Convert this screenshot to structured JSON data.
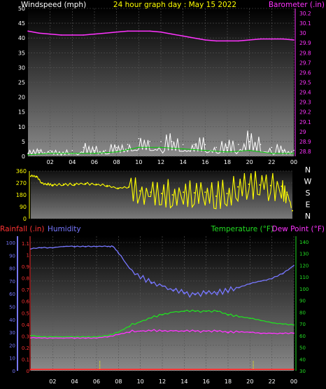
{
  "colors": {
    "background": "#000000",
    "wind": "#ffffff",
    "wind_avg": "#00cc00",
    "baro": "#ff33ff",
    "dir": "#ffff00",
    "rain": "#ff3333",
    "humidity": "#7777ff",
    "temp": "#22dd22",
    "dew": "#ff33ff",
    "rain_axis": "#ff3333",
    "hum_axis": "#7777ff",
    "temp_axis": "#22dd22"
  },
  "chart_data": [
    {
      "type": "line",
      "panel": "top",
      "title": "24 hour graph day : May 15 2022",
      "left_axis_label": "Windspeed (mph)",
      "right_axis_label": "Barometer (.in)",
      "x_ticks": [
        "02",
        "04",
        "06",
        "08",
        "10",
        "12",
        "14",
        "16",
        "18",
        "20",
        "22",
        "00"
      ],
      "y_left_ticks": [
        "0",
        "5",
        "10",
        "15",
        "20",
        "25",
        "30",
        "35",
        "40",
        "45",
        "50"
      ],
      "y_right_ticks": [
        "28.8",
        "28.9",
        "29",
        "29.1",
        "29.2",
        "29.3",
        "29.4",
        "29.5",
        "29.6",
        "29.7",
        "29.8",
        "29.9",
        "30",
        "30.1",
        "30.2"
      ],
      "ylim_left": [
        0,
        50
      ],
      "ylim_right": [
        28.75,
        30.25
      ],
      "series": [
        {
          "name": "Windspeed",
          "axis": "left",
          "x": [
            0,
            1,
            2,
            3,
            4,
            5,
            6,
            7,
            8,
            9,
            10,
            11,
            12,
            13,
            14,
            15,
            16,
            17,
            18,
            19,
            20,
            21,
            22,
            23,
            24
          ],
          "values": [
            1,
            2,
            2,
            1,
            2,
            3,
            2,
            2,
            3,
            4,
            6,
            5,
            5,
            5,
            4,
            4,
            4,
            3,
            3,
            4,
            5,
            4,
            3,
            2,
            2
          ]
        },
        {
          "name": "Wind average",
          "axis": "left",
          "x": [
            0,
            2,
            4,
            6,
            8,
            10,
            12,
            14,
            16,
            18,
            20,
            22,
            24
          ],
          "values": [
            0.5,
            1,
            1,
            1,
            1.5,
            3,
            3,
            2.5,
            2,
            1.5,
            2,
            1,
            1
          ]
        },
        {
          "name": "Barometer",
          "axis": "right",
          "x": [
            0,
            1,
            2,
            3,
            4,
            5,
            6,
            7,
            8,
            9,
            10,
            11,
            12,
            13,
            14,
            15,
            16,
            17,
            18,
            19,
            20,
            21,
            22,
            23,
            24
          ],
          "values": [
            30.02,
            30.0,
            29.99,
            29.98,
            29.98,
            29.98,
            29.99,
            30.0,
            30.01,
            30.02,
            30.02,
            30.02,
            30.01,
            29.99,
            29.97,
            29.95,
            29.93,
            29.92,
            29.92,
            29.92,
            29.93,
            29.94,
            29.94,
            29.94,
            29.93
          ]
        }
      ]
    },
    {
      "type": "scatter",
      "panel": "middle",
      "y_ticks": [
        "0",
        "90",
        "180",
        "270",
        "360"
      ],
      "right_labels": [
        "N",
        "W",
        "S",
        "E",
        "N"
      ],
      "ylim": [
        0,
        360
      ],
      "series": [
        {
          "name": "Wind direction",
          "x": [
            0,
            0.5,
            1,
            1.5,
            2,
            3,
            4,
            5,
            6,
            7,
            8,
            9,
            10,
            11,
            12,
            13,
            14,
            15,
            16,
            17,
            18,
            19,
            20,
            21,
            22,
            23,
            23.5,
            24
          ],
          "values": [
            320,
            320,
            270,
            260,
            255,
            260,
            260,
            265,
            260,
            250,
            230,
            240,
            210,
            200,
            190,
            180,
            200,
            195,
            200,
            170,
            190,
            240,
            260,
            255,
            250,
            245,
            200,
            60
          ]
        }
      ]
    },
    {
      "type": "line",
      "panel": "bottom",
      "left_axis_label_1": "Rainfall (.in)",
      "left_axis_label_2": "Humidity",
      "right_axis_label_1": "Temperature (°F)",
      "right_axis_label_2": "Dew Point (°F)",
      "x_ticks": [
        "02",
        "04",
        "06",
        "08",
        "10",
        "12",
        "14",
        "16",
        "18",
        "20",
        "22",
        "00"
      ],
      "rain_ticks": [
        "0",
        "0.1",
        "0.2",
        "0.3",
        "0.4",
        "0.5",
        "0.6",
        "0.7",
        "0.8",
        "0.9",
        "1",
        "1.1"
      ],
      "humidity_ticks": [
        "0",
        "10",
        "20",
        "30",
        "40",
        "50",
        "60",
        "70",
        "80",
        "90",
        "100"
      ],
      "temp_ticks": [
        "30",
        "40",
        "50",
        "60",
        "70",
        "80",
        "90",
        "100",
        "110",
        "120",
        "130",
        "140"
      ],
      "ylim_humidity": [
        0,
        100
      ],
      "ylim_temp": [
        30,
        140
      ],
      "series": [
        {
          "name": "Rainfall",
          "axis": "rain",
          "x": [
            0,
            24
          ],
          "values": [
            0,
            0
          ]
        },
        {
          "name": "Humidity",
          "axis": "humidity",
          "x": [
            0,
            1,
            2,
            3,
            4,
            5,
            6,
            7,
            7.5,
            8,
            9,
            10,
            11,
            12,
            13,
            14,
            15,
            16,
            17,
            18,
            19,
            20,
            21,
            22,
            23,
            24
          ],
          "values": [
            95,
            96,
            96,
            97,
            97,
            97,
            97,
            97,
            97,
            92,
            80,
            72,
            69,
            66,
            63,
            61,
            60,
            61,
            61,
            62,
            65,
            68,
            70,
            72,
            76,
            82
          ]
        },
        {
          "name": "Temperature",
          "axis": "temp",
          "x": [
            0,
            1,
            2,
            3,
            4,
            5,
            6,
            7,
            8,
            9,
            10,
            11,
            12,
            13,
            14,
            15,
            16,
            17,
            18,
            19,
            20,
            21,
            22,
            23,
            24
          ],
          "values": [
            60,
            59,
            59,
            59,
            59,
            59,
            59,
            60,
            63,
            68,
            72,
            75,
            78,
            80,
            81,
            81,
            81,
            81,
            78,
            76,
            75,
            73,
            71,
            70,
            69
          ]
        },
        {
          "name": "Dew Point",
          "axis": "temp",
          "x": [
            0,
            1,
            2,
            3,
            4,
            5,
            6,
            7,
            8,
            9,
            10,
            11,
            12,
            13,
            14,
            15,
            16,
            17,
            18,
            19,
            20,
            21,
            22,
            23,
            24
          ],
          "values": [
            58,
            58,
            58,
            58,
            58,
            58,
            58,
            59,
            61,
            63,
            64,
            64,
            64,
            64,
            64,
            64,
            64,
            64,
            63,
            63,
            63,
            62,
            62,
            62,
            62
          ]
        }
      ]
    }
  ]
}
